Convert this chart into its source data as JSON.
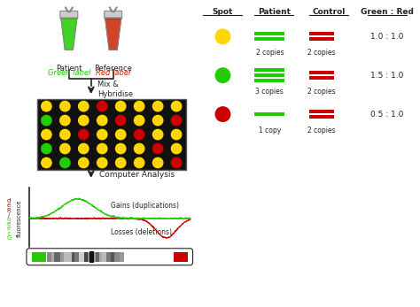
{
  "bg_color": "#ffffff",
  "patient_label": "Patient",
  "patient_sublabel": "Green label",
  "reference_label": "Reference",
  "reference_sublabel": "Red label",
  "mix_text": "Mix &\nHybridise",
  "computer_text": "Computer Analysis",
  "grid_bg": "#111111",
  "grid_rows": 5,
  "grid_cols": 8,
  "grid_colors": [
    [
      "yellow",
      "yellow",
      "yellow",
      "red",
      "yellow",
      "yellow",
      "yellow",
      "yellow"
    ],
    [
      "green",
      "yellow",
      "yellow",
      "yellow",
      "red",
      "yellow",
      "yellow",
      "red"
    ],
    [
      "yellow",
      "yellow",
      "red",
      "yellow",
      "yellow",
      "red",
      "yellow",
      "yellow"
    ],
    [
      "green",
      "yellow",
      "yellow",
      "yellow",
      "yellow",
      "yellow",
      "red",
      "yellow"
    ],
    [
      "yellow",
      "green",
      "yellow",
      "yellow",
      "yellow",
      "yellow",
      "yellow",
      "red"
    ]
  ],
  "spot_colors": {
    "yellow": "#FFD700",
    "green": "#22CC00",
    "red": "#CC0000"
  },
  "legend_spot_colors": [
    "#FFD700",
    "#22CC00",
    "#CC0000"
  ],
  "legend_patient_labels": [
    "2 copies",
    "3 copies",
    "1 copy"
  ],
  "legend_control_labels": [
    "2 copies",
    "2 copies",
    "2 copies"
  ],
  "legend_ratio_labels": [
    "1.0 : 1.0",
    "1.5 : 1.0",
    "0.5 : 1.0"
  ],
  "legend_green_bars": [
    2,
    3,
    1
  ],
  "legend_red_bars": [
    2,
    2,
    2
  ],
  "gain_label": "Gains (duplications)",
  "loss_label": "Losses (deletions)",
  "chrom_gray_shades": [
    "#888888",
    "#aaaaaa",
    "#666666",
    "#999999",
    "#bbbbbb",
    "#555555",
    "#777777",
    "#cccccc",
    "#444444",
    "#888888",
    "#999999",
    "#666666",
    "#aaaaaa",
    "#bbbbbb",
    "#777777",
    "#555555",
    "#888888",
    "#999999"
  ],
  "header_spot": "Spot",
  "header_patient": "Patient",
  "header_control": "Control",
  "header_ratio": "Green : Red"
}
